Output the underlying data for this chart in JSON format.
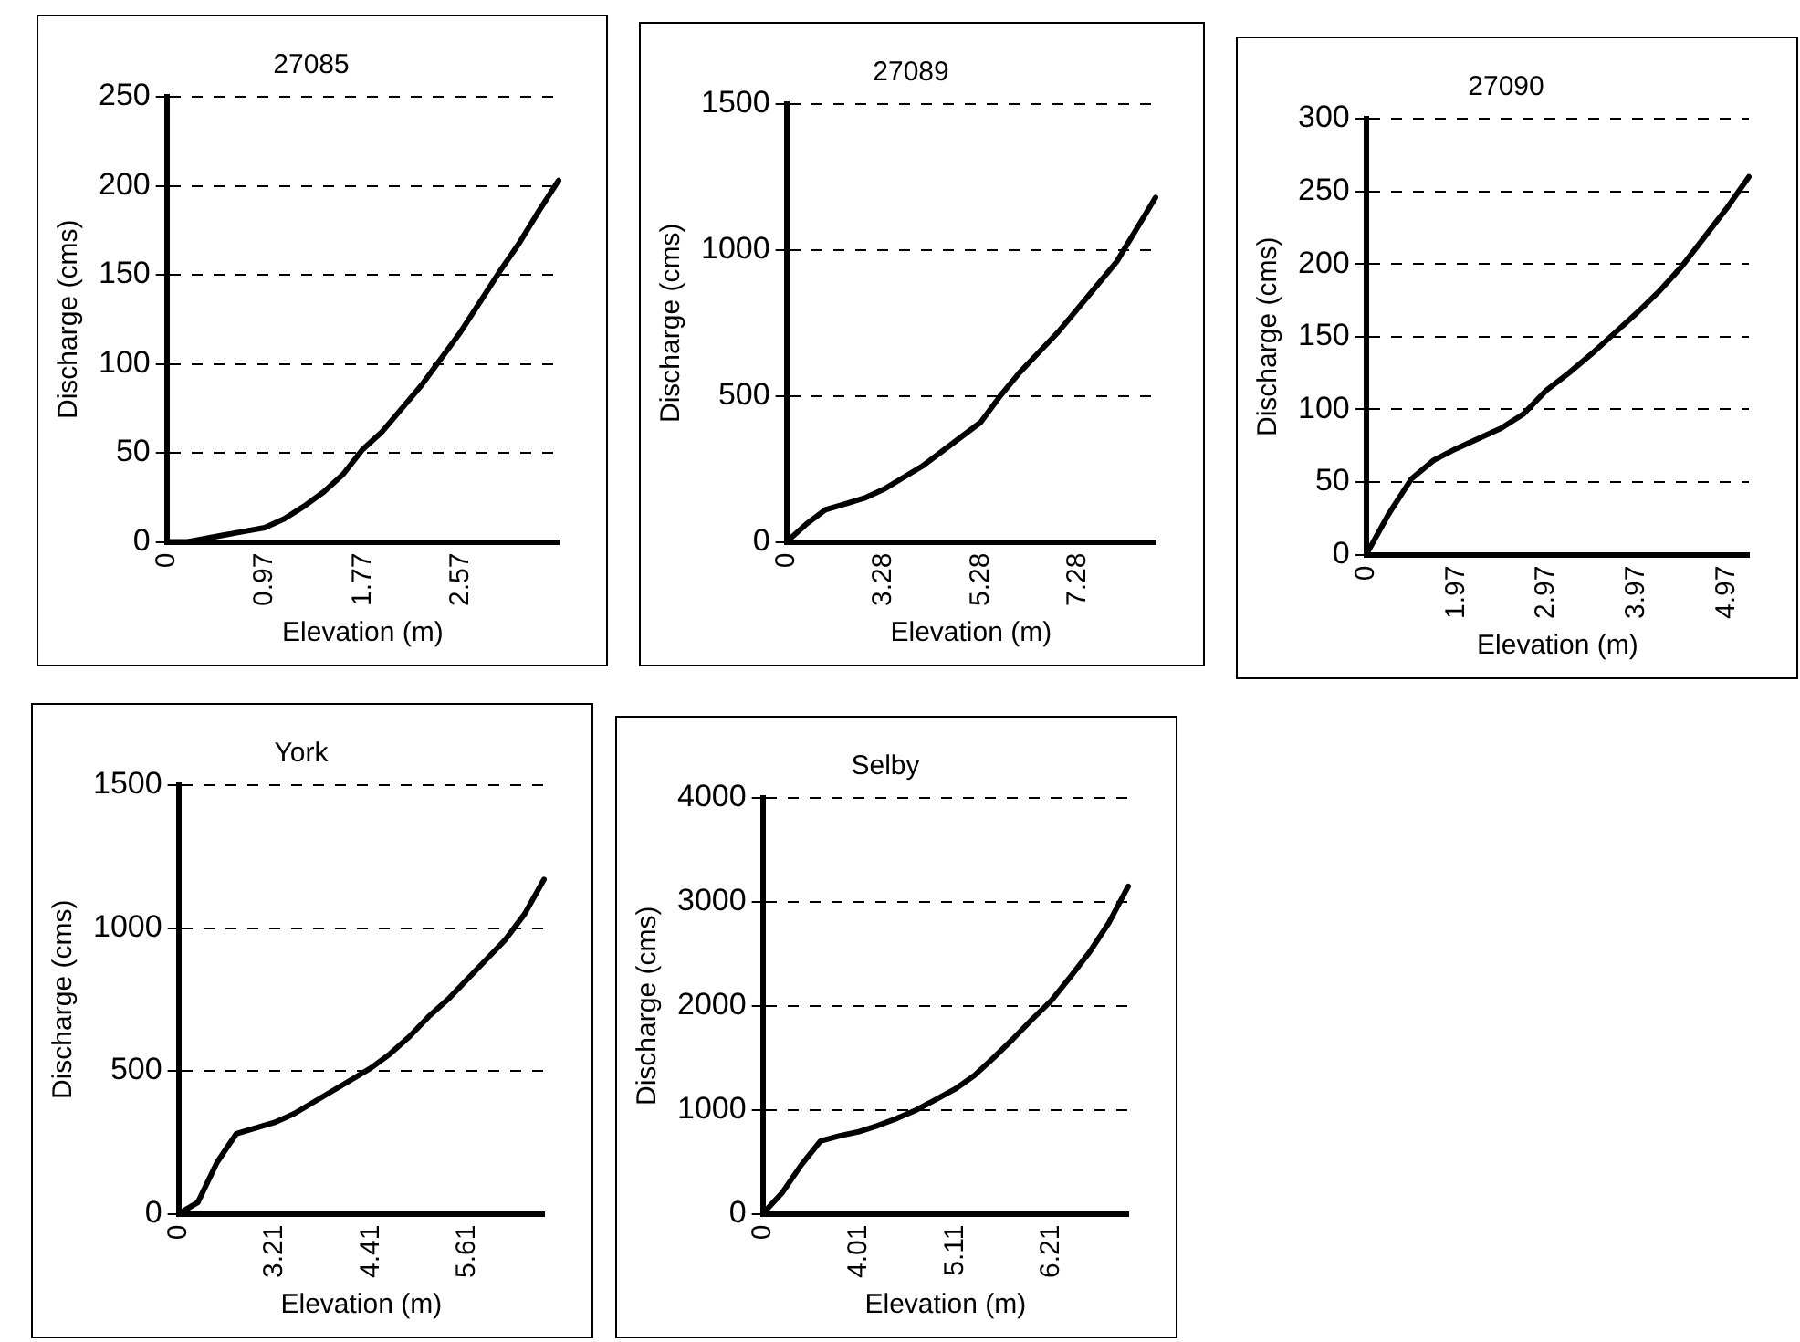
{
  "chart_data": [
    {
      "type": "line",
      "title": "27085",
      "xlabel": "Elevation (m)",
      "ylabel": "Discharge (cms)",
      "grid": "y",
      "legend": false,
      "marker": "none",
      "line_style": "solid",
      "ylim": [
        0,
        250
      ],
      "yticks": [
        0,
        50,
        100,
        150,
        200,
        250
      ],
      "categories": [
        "0",
        null,
        null,
        null,
        null,
        "0.97",
        null,
        null,
        null,
        null,
        "1.77",
        null,
        null,
        null,
        null,
        "2.57",
        null,
        null,
        null,
        null,
        null
      ],
      "series": [
        {
          "color": "#000000",
          "values": [
            0,
            0,
            2,
            4,
            6,
            8,
            13,
            20,
            28,
            38,
            52,
            62,
            75,
            88,
            103,
            118,
            135,
            152,
            168,
            186,
            203
          ]
        }
      ]
    },
    {
      "type": "line",
      "title": "27089",
      "xlabel": "Elevation (m)",
      "ylabel": "Discharge (cms)",
      "grid": "y",
      "legend": false,
      "marker": "none",
      "line_style": "solid",
      "ylim": [
        0,
        1500
      ],
      "yticks": [
        0,
        500,
        1000,
        1500
      ],
      "categories": [
        "0",
        null,
        null,
        null,
        null,
        "3.28",
        null,
        null,
        null,
        null,
        "5.28",
        null,
        null,
        null,
        null,
        "7.28",
        null,
        null,
        null,
        null
      ],
      "series": [
        {
          "color": "#000000",
          "values": [
            0,
            60,
            110,
            130,
            150,
            180,
            220,
            260,
            310,
            360,
            410,
            500,
            580,
            650,
            720,
            800,
            880,
            960,
            1070,
            1180
          ]
        }
      ]
    },
    {
      "type": "line",
      "title": "27090",
      "xlabel": "Elevation (m)",
      "ylabel": "Discharge (cms)",
      "grid": "y",
      "legend": false,
      "marker": "none",
      "line_style": "solid",
      "ylim": [
        0,
        300
      ],
      "yticks": [
        0,
        50,
        100,
        150,
        200,
        250,
        300
      ],
      "categories": [
        "0",
        null,
        null,
        null,
        "1.97",
        null,
        null,
        null,
        "2.97",
        null,
        null,
        null,
        "3.97",
        null,
        null,
        null,
        "4.97",
        null
      ],
      "series": [
        {
          "color": "#000000",
          "values": [
            0,
            28,
            52,
            65,
            73,
            80,
            87,
            97,
            113,
            125,
            138,
            152,
            166,
            181,
            198,
            218,
            238,
            260
          ]
        }
      ]
    },
    {
      "type": "line",
      "title": "York",
      "xlabel": "Elevation (m)",
      "ylabel": "Discharge (cms)",
      "grid": "y",
      "legend": false,
      "marker": "none",
      "line_style": "solid",
      "ylim": [
        0,
        1500
      ],
      "yticks": [
        0,
        500,
        1000,
        1500
      ],
      "categories": [
        "0",
        null,
        null,
        null,
        null,
        "3.21",
        null,
        null,
        null,
        null,
        "4.41",
        null,
        null,
        null,
        null,
        "5.61",
        null,
        null,
        null,
        null
      ],
      "series": [
        {
          "color": "#000000",
          "values": [
            0,
            40,
            180,
            280,
            300,
            320,
            350,
            390,
            430,
            470,
            510,
            560,
            620,
            690,
            750,
            820,
            890,
            960,
            1050,
            1170
          ]
        }
      ]
    },
    {
      "type": "line",
      "title": "Selby",
      "xlabel": "Elevation (m)",
      "ylabel": "Discharge (cms)",
      "grid": "y",
      "legend": false,
      "marker": "none",
      "line_style": "solid",
      "ylim": [
        0,
        4000
      ],
      "yticks": [
        0,
        1000,
        2000,
        3000,
        4000
      ],
      "categories": [
        "0",
        null,
        null,
        null,
        null,
        "4.01",
        null,
        null,
        null,
        null,
        "5.11",
        null,
        null,
        null,
        null,
        "6.21",
        null,
        null,
        null,
        null
      ],
      "series": [
        {
          "color": "#000000",
          "values": [
            0,
            200,
            470,
            700,
            750,
            790,
            850,
            920,
            1000,
            1100,
            1200,
            1330,
            1500,
            1680,
            1870,
            2050,
            2280,
            2520,
            2800,
            3150
          ]
        }
      ]
    }
  ]
}
